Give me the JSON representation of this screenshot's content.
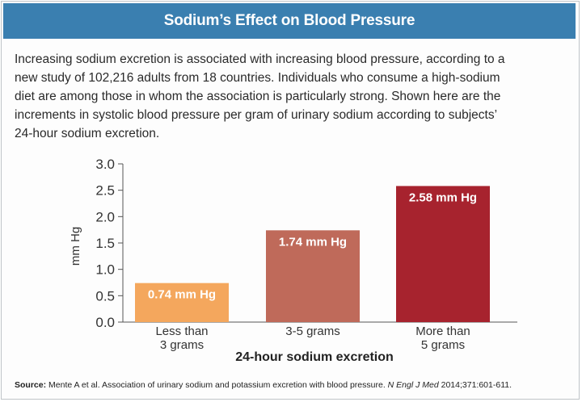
{
  "header": {
    "title": "Sodium’s Effect on Blood Pressure"
  },
  "intro": {
    "lines": [
      "Increasing sodium excretion is associated with increasing blood pressure, according to a",
      "new study of 102,216 adults from 18 countries. Individuals who consume a high-sodium",
      "diet are among those in whom the association is particularly strong. Shown here are the",
      "increments in systolic blood pressure per gram of urinary sodium according to subjects’",
      "24-hour sodium excretion."
    ]
  },
  "chart_data": {
    "type": "bar",
    "title": "",
    "xlabel": "24-hour sodium excretion",
    "ylabel": "mm Hg",
    "ylim": [
      0,
      3.0
    ],
    "yticks": [
      "0.0",
      "0.5",
      "1.0",
      "1.5",
      "2.0",
      "2.5",
      "3.0"
    ],
    "grid": false,
    "categories": [
      [
        "Less than",
        "3 grams"
      ],
      [
        "3-5 grams"
      ],
      [
        "More than",
        "5 grams"
      ]
    ],
    "values": [
      0.74,
      1.74,
      2.58
    ],
    "data_labels": [
      "0.74 mm Hg",
      "1.74 mm Hg",
      "2.58 mm Hg"
    ],
    "colors": [
      "#f4a75d",
      "#bf6a5a",
      "#a7232e"
    ]
  },
  "source": {
    "label": "Source:",
    "text_before": "Mente A et al. Association of urinary sodium and potassium excretion with blood pressure.",
    "journal": "N Engl J Med",
    "text_after": "2014;371:601-611."
  }
}
